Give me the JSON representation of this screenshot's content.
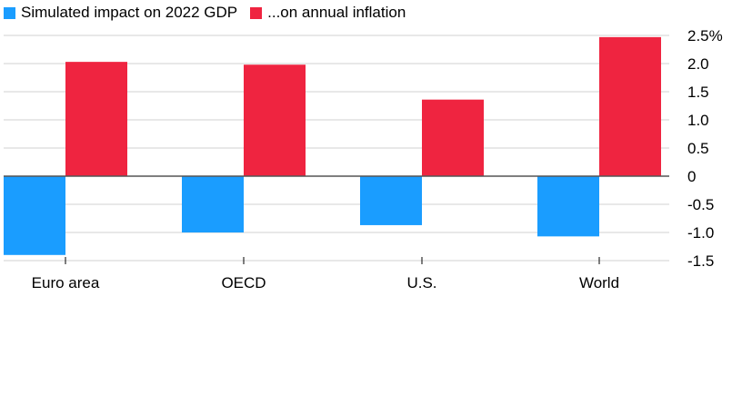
{
  "legend": {
    "gdp_label": "Simulated impact on 2022 GDP",
    "inflation_label": "...on annual inflation"
  },
  "colors": {
    "gdp": "#1a9dff",
    "inflation": "#ef2440",
    "grid": "#e0e0e0",
    "zero": "#555555"
  },
  "chart_data": {
    "type": "bar",
    "categories": [
      "Euro area",
      "OECD",
      "U.S.",
      "World"
    ],
    "series": [
      {
        "name": "Simulated impact on 2022 GDP",
        "values": [
          -1.4,
          -1.0,
          -0.87,
          -1.07
        ]
      },
      {
        "name": "...on annual inflation",
        "values": [
          2.03,
          1.98,
          1.36,
          2.47
        ]
      }
    ],
    "y_ticks": [
      2.5,
      2.0,
      1.5,
      1.0,
      0.5,
      0,
      -0.5,
      -1.0,
      -1.5
    ],
    "y_tick_labels": [
      "2.5%",
      "2.0",
      "1.5",
      "1.0",
      "0.5",
      "0",
      "-0.5",
      "-1.0",
      "-1.5"
    ],
    "ylim": [
      -1.5,
      2.5
    ],
    "ylabel": "",
    "xlabel": "",
    "grid": true,
    "legend_position": "top-left"
  }
}
